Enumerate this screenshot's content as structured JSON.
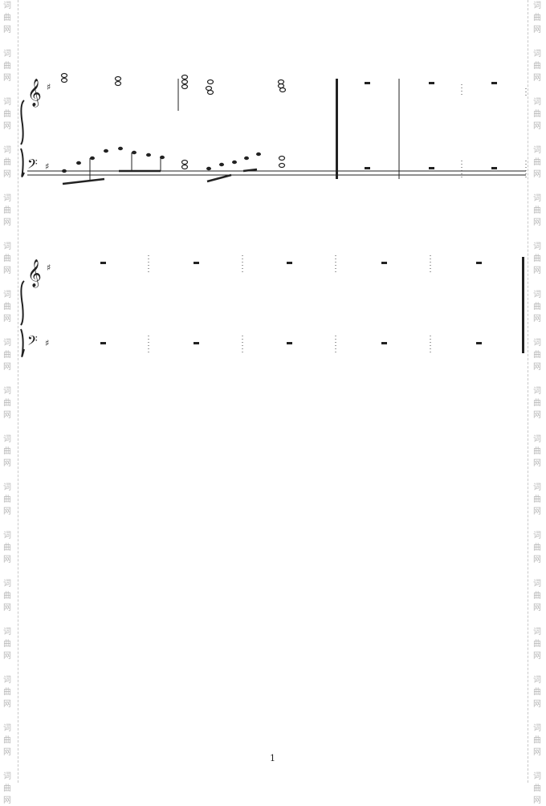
{
  "watermark": {
    "chars": [
      "词",
      "曲",
      "网"
    ],
    "color": "#b8b8b8"
  },
  "score": {
    "systems": [
      {
        "clefs": [
          "treble-clef-icon",
          "bass-clef-icon"
        ],
        "key_signature": "♯"
      },
      {
        "clefs": [
          "treble-clef-icon",
          "bass-clef-icon"
        ],
        "key_signature": "♯"
      }
    ],
    "symbols": {
      "treble": "𝄞",
      "bass": "𝄢",
      "sharp": "♯"
    }
  },
  "footer": {
    "page_number": "1"
  }
}
